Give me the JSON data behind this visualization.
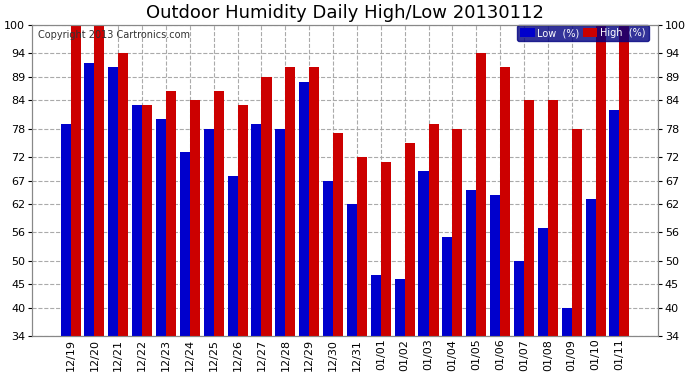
{
  "title": "Outdoor Humidity Daily High/Low 20130112",
  "copyright": "Copyright 2013 Cartronics.com",
  "categories": [
    "12/19",
    "12/20",
    "12/21",
    "12/22",
    "12/23",
    "12/24",
    "12/25",
    "12/26",
    "12/27",
    "12/28",
    "12/29",
    "12/30",
    "12/31",
    "01/01",
    "01/02",
    "01/03",
    "01/04",
    "01/05",
    "01/06",
    "01/07",
    "01/08",
    "01/09",
    "01/10",
    "01/11"
  ],
  "low_values": [
    79,
    92,
    91,
    83,
    80,
    73,
    78,
    68,
    79,
    78,
    88,
    67,
    62,
    47,
    46,
    69,
    55,
    65,
    64,
    50,
    57,
    40,
    63,
    82
  ],
  "high_values": [
    100,
    100,
    94,
    83,
    86,
    84,
    86,
    83,
    89,
    91,
    91,
    77,
    72,
    71,
    75,
    79,
    78,
    94,
    91,
    84,
    84,
    78,
    100,
    100
  ],
  "low_color": "#0000cc",
  "high_color": "#cc0000",
  "background_color": "#ffffff",
  "grid_color": "#aaaaaa",
  "yticks": [
    34,
    40,
    45,
    50,
    56,
    62,
    67,
    72,
    78,
    84,
    89,
    94,
    100
  ],
  "ymin": 34,
  "ymax": 100,
  "title_fontsize": 13,
  "tick_fontsize": 8,
  "copyright_fontsize": 7,
  "legend_label_low": "Low  (%)",
  "legend_label_high": "High  (%)",
  "legend_bg": "#000080",
  "legend_high_bg": "#cc0000"
}
